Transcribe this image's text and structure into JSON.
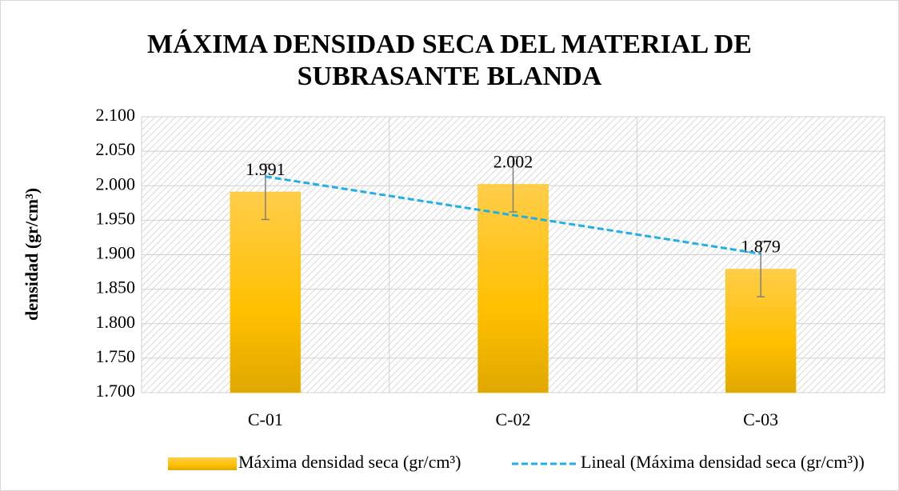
{
  "chart_data": {
    "type": "bar",
    "title": [
      "MÁXIMA DENSIDAD SECA DEL MATERIAL DE",
      "SUBRASANTE BLANDA"
    ],
    "y_label": "densidad  (gr/cm³)",
    "categories": [
      "C-01",
      "C-02",
      "C-03"
    ],
    "series": [
      {
        "name": "Máxima densidad seca (gr/cm³)",
        "color": "#ffc000",
        "values": [
          1.991,
          2.002,
          1.879
        ],
        "errors": [
          0.04,
          0.04,
          0.04
        ]
      }
    ],
    "trendline": {
      "type": "linear",
      "name": "Lineal (Máxima densidad seca (gr/cm³))",
      "color": "#1fb0e8"
    },
    "ylim": [
      1.7,
      2.1
    ],
    "yticks": [
      {
        "value": 1.7,
        "label": "1.700"
      },
      {
        "value": 1.75,
        "label": "1.750"
      },
      {
        "value": 1.8,
        "label": "1.800"
      },
      {
        "value": 1.85,
        "label": "1.850"
      },
      {
        "value": 1.9,
        "label": "1.900"
      },
      {
        "value": 1.95,
        "label": "1.950"
      },
      {
        "value": 2.0,
        "label": "2.000"
      },
      {
        "value": 2.05,
        "label": "2.050"
      },
      {
        "value": 2.1,
        "label": "2.100"
      }
    ],
    "grid": true,
    "legend": "bottom"
  }
}
